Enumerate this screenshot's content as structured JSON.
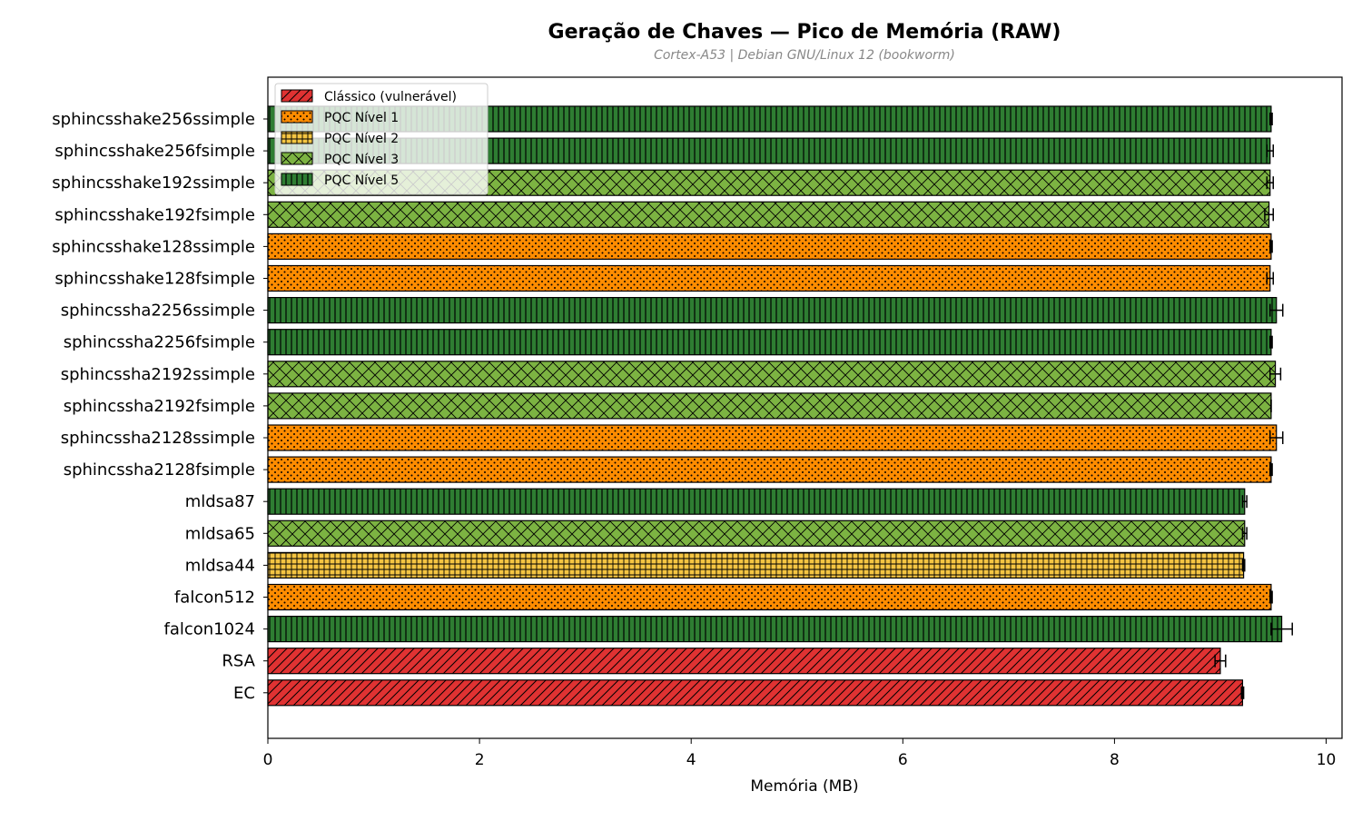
{
  "chart_data": {
    "type": "bar",
    "orientation": "horizontal",
    "title": "Geração de Chaves — Pico de Memória (RAW)",
    "subtitle": "Cortex-A53 | Debian GNU/Linux 12 (bookworm)",
    "xlabel": "Memória (MB)",
    "ylabel": "",
    "xlim": [
      0,
      10.15
    ],
    "xticks": [
      0,
      2,
      4,
      6,
      8,
      10
    ],
    "grid": false,
    "legend_position": "top-left",
    "legend": [
      {
        "key": "classic",
        "label": "Clássico (vulnerável)",
        "color": "#e03232",
        "hatch": "diagonal"
      },
      {
        "key": "l1",
        "label": "PQC Nível 1",
        "color": "#ff8c00",
        "hatch": "dots"
      },
      {
        "key": "l2",
        "label": "PQC Nível 2",
        "color": "#f5c542",
        "hatch": "grid"
      },
      {
        "key": "l3",
        "label": "PQC Nível 3",
        "color": "#7cb342",
        "hatch": "cross"
      },
      {
        "key": "l5",
        "label": "PQC Nível 5",
        "color": "#2e7d32",
        "hatch": "vertical"
      }
    ],
    "categories": [
      "sphincsshake256ssimple",
      "sphincsshake256fsimple",
      "sphincsshake192ssimple",
      "sphincsshake192fsimple",
      "sphincsshake128ssimple",
      "sphincsshake128fsimple",
      "sphincssha2256ssimple",
      "sphincssha2256fsimple",
      "sphincssha2192ssimple",
      "sphincssha2192fsimple",
      "sphincssha2128ssimple",
      "sphincssha2128fsimple",
      "mldsa87",
      "mldsa65",
      "mldsa44",
      "falcon512",
      "falcon1024",
      "RSA",
      "EC"
    ],
    "values": [
      9.48,
      9.47,
      9.47,
      9.46,
      9.48,
      9.47,
      9.53,
      9.48,
      9.52,
      9.48,
      9.53,
      9.48,
      9.23,
      9.23,
      9.22,
      9.48,
      9.58,
      9.0,
      9.21
    ],
    "errors": [
      0.01,
      0.03,
      0.03,
      0.04,
      0.01,
      0.03,
      0.06,
      0.01,
      0.05,
      0.0,
      0.06,
      0.01,
      0.02,
      0.02,
      0.01,
      0.01,
      0.1,
      0.05,
      0.01
    ],
    "groups": [
      "l5",
      "l5",
      "l3",
      "l3",
      "l1",
      "l1",
      "l5",
      "l5",
      "l3",
      "l3",
      "l1",
      "l1",
      "l5",
      "l3",
      "l2",
      "l1",
      "l5",
      "classic",
      "classic"
    ]
  }
}
